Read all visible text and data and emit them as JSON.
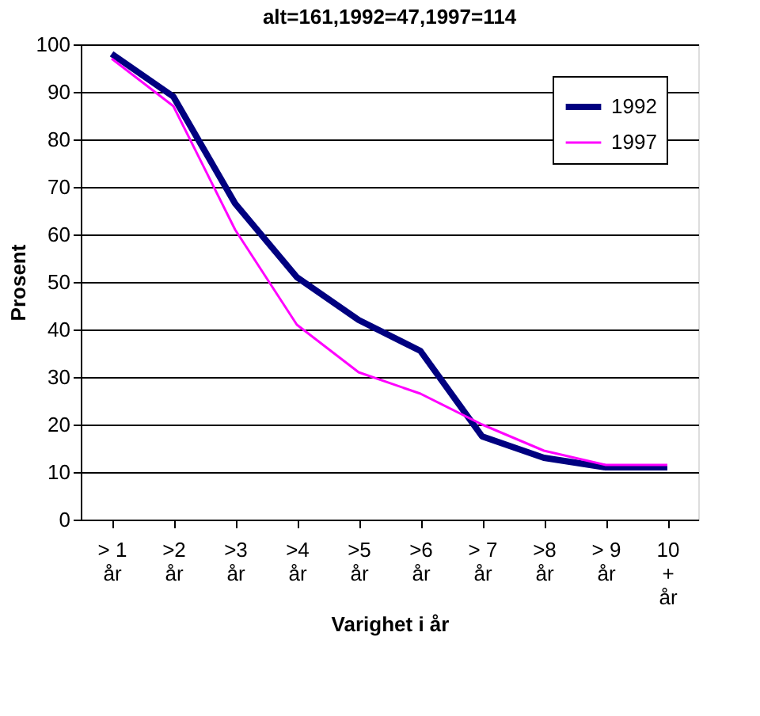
{
  "chart_data": {
    "type": "line",
    "title": "alt=161,1992=47,1997=114",
    "xlabel": "Varighet i år",
    "ylabel": "Prosent",
    "categories": [
      "> 1\når",
      ">2\når",
      ">3\når",
      ">4\når",
      ">5\når",
      ">6\når",
      "> 7\når",
      ">8\når",
      "> 9\når",
      "10\n+\når"
    ],
    "series": [
      {
        "name": "1992",
        "color": "#000080",
        "values": [
          98,
          89,
          66.5,
          51,
          42,
          35.5,
          17.5,
          13,
          11,
          11
        ]
      },
      {
        "name": "1997",
        "color": "#ff00ff",
        "values": [
          97,
          87,
          61,
          41,
          31,
          26.5,
          20,
          14.5,
          11.5,
          11.5
        ]
      }
    ],
    "ylim": [
      0,
      100
    ],
    "yticks": [
      0,
      10,
      20,
      30,
      40,
      50,
      60,
      70,
      80,
      90,
      100
    ],
    "grid": "y",
    "legend": "top right",
    "marker": "none",
    "line_style": "solid"
  }
}
